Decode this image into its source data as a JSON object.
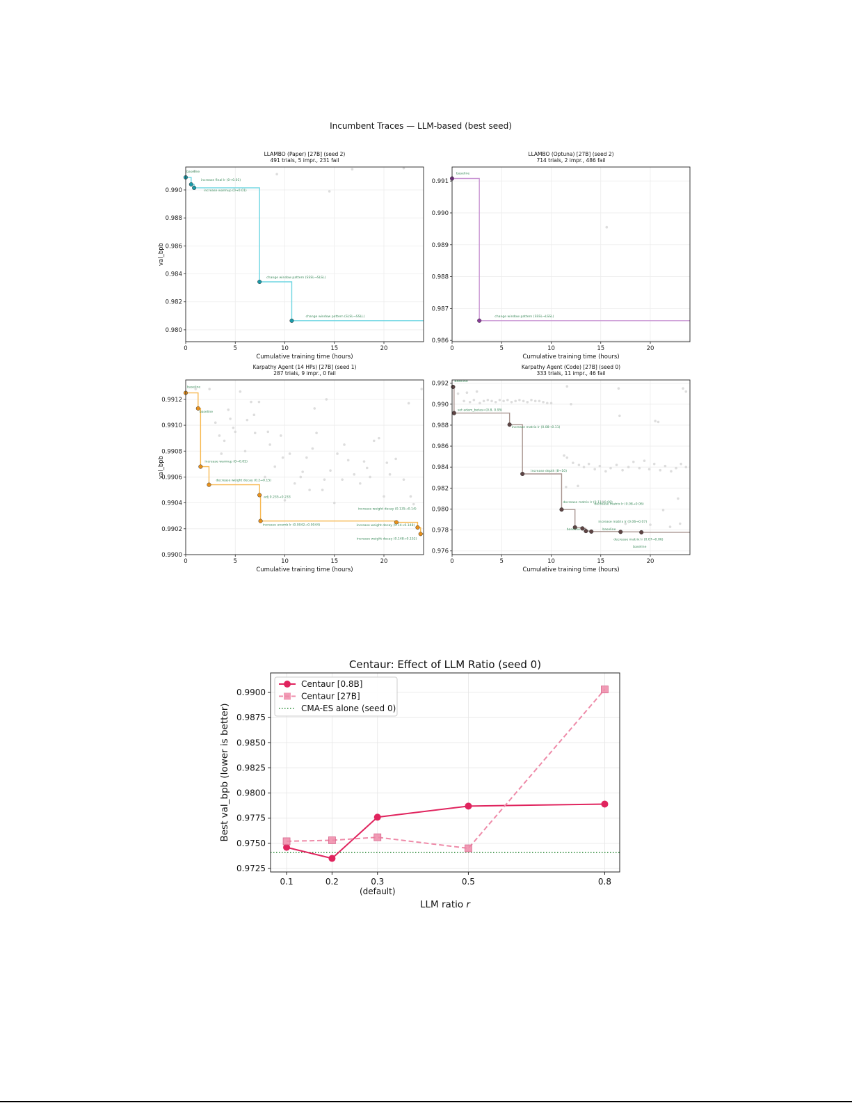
{
  "figure1": {
    "suptitle": "Incumbent Traces — LLM-based (best seed)"
  },
  "chart_data": [
    {
      "type": "line",
      "title": "LLAMBO (Paper) [27B] (seed 2)",
      "subtitle": "491 trials, 5 impr., 231 fail",
      "xlabel": "Cumulative training time (hours)",
      "ylabel": "val_bpb",
      "xlim": [
        0,
        24
      ],
      "ylim": [
        0.97915,
        0.99164
      ],
      "xticks": [
        0,
        5,
        10,
        15,
        20
      ],
      "yticks": [
        0.98,
        0.982,
        0.984,
        0.986,
        0.988,
        0.99
      ],
      "ytick_decimals": 3,
      "grid": true,
      "line_color": "#6fd6e2",
      "marker_color": "#1a9aa8",
      "incumbent": [
        {
          "x": 0.0,
          "y": 0.9909,
          "label": "baseline"
        },
        {
          "x": 0.55,
          "y": 0.9904,
          "label": "increase final lr (0→0.01)"
        },
        {
          "x": 0.85,
          "y": 0.99015,
          "label": "increase warmup (0→0.01)"
        },
        {
          "x": 7.45,
          "y": 0.98343,
          "label": "change window pattern (SSSL→SLSL)"
        },
        {
          "x": 10.7,
          "y": 0.98065,
          "label": "change window pattern (SLSL→SSLL)"
        }
      ],
      "trials": [
        [
          9.2,
          0.99113
        ],
        [
          14.5,
          0.9899
        ],
        [
          16.8,
          0.99148
        ],
        [
          22.0,
          0.99155
        ],
        [
          0.9,
          0.99135
        ]
      ]
    },
    {
      "type": "line",
      "title": "LLAMBO (Optuna) [27B] (seed 2)",
      "subtitle": "714 trials, 2 impr., 486 fail",
      "xlabel": "Cumulative training time (hours)",
      "ylabel": "",
      "xlim": [
        0,
        24
      ],
      "ylim": [
        0.98596,
        0.99144
      ],
      "xticks": [
        0,
        5,
        10,
        15,
        20
      ],
      "yticks": [
        0.986,
        0.987,
        0.988,
        0.989,
        0.99,
        0.991
      ],
      "ytick_decimals": 3,
      "grid": true,
      "line_color": "#c996d4",
      "marker_color": "#8a3a9a",
      "incumbent": [
        {
          "x": 0.0,
          "y": 0.99108,
          "label": "baseline"
        },
        {
          "x": 2.75,
          "y": 0.98662,
          "label": "change window pattern (SSSL→LSSL)"
        }
      ],
      "trials": [
        [
          15.6,
          0.98955
        ]
      ]
    },
    {
      "type": "line",
      "title": "Karpathy Agent (14 HPs) [27B] (seed 1)",
      "subtitle": "287 trials, 9 impr., 0 fail",
      "xlabel": "Cumulative training time (hours)",
      "ylabel": "val_bpb",
      "xlim": [
        0,
        24
      ],
      "ylim": [
        0.99,
        0.99135
      ],
      "xticks": [
        0,
        5,
        10,
        15,
        20
      ],
      "yticks": [
        0.99,
        0.9902,
        0.9904,
        0.9906,
        0.9908,
        0.991,
        0.9912
      ],
      "ytick_decimals": 4,
      "grid": true,
      "line_color": "#f7b850",
      "marker_color": "#e8901a",
      "incumbent": [
        {
          "x": 0.0,
          "y": 0.99125,
          "label": "baseline"
        },
        {
          "x": 1.25,
          "y": 0.99113,
          "label": "baseline"
        },
        {
          "x": 1.5,
          "y": 0.99068,
          "label": "increase warmup (0→0.05)"
        },
        {
          "x": 2.35,
          "y": 0.99054,
          "label": "decrease weight decay (0.2→0.15)"
        },
        {
          "x": 7.45,
          "y": 0.99046,
          "label": "adj 0.235→0.233"
        },
        {
          "x": 7.55,
          "y": 0.99026,
          "label": "increase unemb lr (0.0042→0.0044)"
        },
        {
          "x": 21.25,
          "y": 0.99025,
          "label": "increase weight decay (0.135→0.14)"
        },
        {
          "x": 23.4,
          "y": 0.99021,
          "label": "increase weight decay (0.14→0.148)"
        },
        {
          "x": 23.7,
          "y": 0.99016,
          "label": "increase weight decay (0.148→0.152)"
        }
      ],
      "trials": [
        [
          1.0,
          0.99128
        ],
        [
          2.4,
          0.99128
        ],
        [
          3.0,
          0.99102
        ],
        [
          3.4,
          0.99092
        ],
        [
          3.6,
          0.99078
        ],
        [
          4.3,
          0.99112
        ],
        [
          4.5,
          0.99105
        ],
        [
          4.8,
          0.99098
        ],
        [
          5.5,
          0.99126
        ],
        [
          6.2,
          0.99104
        ],
        [
          6.6,
          0.99118
        ],
        [
          6.9,
          0.99108
        ],
        [
          7.4,
          0.99118
        ],
        [
          8.3,
          0.99095
        ],
        [
          8.5,
          0.99085
        ],
        [
          9.0,
          0.99068
        ],
        [
          9.6,
          0.99092
        ],
        [
          10.5,
          0.99078
        ],
        [
          11.0,
          0.99055
        ],
        [
          11.6,
          0.9906
        ],
        [
          12.2,
          0.99075
        ],
        [
          13.0,
          0.99113
        ],
        [
          13.2,
          0.99094
        ],
        [
          14.2,
          0.9912
        ],
        [
          14.6,
          0.99065
        ],
        [
          15.0,
          0.9904
        ],
        [
          15.3,
          0.99078
        ],
        [
          15.8,
          0.99058
        ],
        [
          16.4,
          0.99073
        ],
        [
          17.0,
          0.99062
        ],
        [
          17.6,
          0.99055
        ],
        [
          18.0,
          0.99072
        ],
        [
          18.6,
          0.9906
        ],
        [
          19.0,
          0.99088
        ],
        [
          19.5,
          0.9909
        ],
        [
          20.0,
          0.99045
        ],
        [
          20.6,
          0.99062
        ],
        [
          21.2,
          0.99074
        ],
        [
          22.0,
          0.99058
        ],
        [
          22.5,
          0.99117
        ],
        [
          23.0,
          0.99039
        ],
        [
          23.8,
          0.99128
        ],
        [
          12.5,
          0.9905
        ],
        [
          10.0,
          0.99042
        ],
        [
          8.0,
          0.9906
        ],
        [
          16.0,
          0.99085
        ],
        [
          5.0,
          0.99095
        ],
        [
          6.0,
          0.9908
        ],
        [
          13.8,
          0.9905
        ],
        [
          9.8,
          0.99075
        ],
        [
          11.8,
          0.99064
        ],
        [
          14.0,
          0.99058
        ],
        [
          18.3,
          0.99067
        ],
        [
          20.3,
          0.99071
        ],
        [
          22.7,
          0.99045
        ],
        [
          3.9,
          0.99088
        ],
        [
          7.0,
          0.99094
        ],
        [
          12.8,
          0.99082
        ]
      ]
    },
    {
      "type": "line",
      "title": "Karpathy Agent (Code) [27B] (seed 0)",
      "subtitle": "333 trials, 11 impr., 46 fail",
      "xlabel": "Cumulative training time (hours)",
      "ylabel": "",
      "xlim": [
        0,
        24
      ],
      "ylim": [
        0.97565,
        0.99231
      ],
      "xticks": [
        0,
        5,
        10,
        15,
        20
      ],
      "yticks": [
        0.976,
        0.978,
        0.98,
        0.982,
        0.984,
        0.986,
        0.988,
        0.99,
        0.992
      ],
      "ytick_decimals": 3,
      "grid": true,
      "line_color": "#a8948f",
      "marker_color": "#5e4444",
      "incumbent": [
        {
          "x": 0.1,
          "y": 0.99165,
          "label": "baseline"
        },
        {
          "x": 0.2,
          "y": 0.98915,
          "label": "set adam_betas=(0.8, 0.95)"
        },
        {
          "x": 5.8,
          "y": 0.98805,
          "label": "increase matrix lr (0.08→0.11)"
        },
        {
          "x": 7.1,
          "y": 0.98335,
          "label": "increase depth (8→10)"
        },
        {
          "x": 11.05,
          "y": 0.97995,
          "label": "decrease matrix lr (0.11→0.08)"
        },
        {
          "x": 12.4,
          "y": 0.97825,
          "label": "baseline"
        },
        {
          "x": 13.15,
          "y": 0.97815,
          "label": "decrease matrix lr (0.08→0.06)"
        },
        {
          "x": 13.5,
          "y": 0.9779,
          "label": "increase matrix lr (0.06→0.07)"
        },
        {
          "x": 14.05,
          "y": 0.97785,
          "label": "baseline"
        },
        {
          "x": 17.0,
          "y": 0.97782,
          "label": "decrease matrix lr (0.07→0.06)"
        },
        {
          "x": 19.1,
          "y": 0.97778,
          "label": "baseline"
        }
      ],
      "trials": [
        [
          0.6,
          0.991
        ],
        [
          1.5,
          0.9911
        ],
        [
          2.5,
          0.9912
        ],
        [
          1.2,
          0.9903
        ],
        [
          1.8,
          0.9902
        ],
        [
          2.2,
          0.9904
        ],
        [
          2.8,
          0.9901
        ],
        [
          3.2,
          0.9903
        ],
        [
          3.6,
          0.9904
        ],
        [
          4.0,
          0.9903
        ],
        [
          4.4,
          0.9902
        ],
        [
          4.8,
          0.9904
        ],
        [
          5.2,
          0.9903
        ],
        [
          5.6,
          0.9904
        ],
        [
          6.0,
          0.9902
        ],
        [
          6.4,
          0.9903
        ],
        [
          6.8,
          0.9904
        ],
        [
          7.2,
          0.9903
        ],
        [
          7.6,
          0.9902
        ],
        [
          8.0,
          0.9904
        ],
        [
          8.4,
          0.9903
        ],
        [
          8.8,
          0.9903
        ],
        [
          9.2,
          0.9902
        ],
        [
          9.6,
          0.9901
        ],
        [
          10.0,
          0.9901
        ],
        [
          11.6,
          0.9917
        ],
        [
          12.0,
          0.99
        ],
        [
          16.8,
          0.9915
        ],
        [
          16.9,
          0.9889
        ],
        [
          20.5,
          0.9884
        ],
        [
          20.8,
          0.9883
        ],
        [
          23.3,
          0.9915
        ],
        [
          23.6,
          0.9912
        ],
        [
          11.3,
          0.9851
        ],
        [
          11.6,
          0.9849
        ],
        [
          12.2,
          0.9844
        ],
        [
          12.8,
          0.9842
        ],
        [
          13.3,
          0.984
        ],
        [
          13.8,
          0.9843
        ],
        [
          14.4,
          0.9838
        ],
        [
          14.9,
          0.9841
        ],
        [
          15.5,
          0.9836
        ],
        [
          16.0,
          0.9839
        ],
        [
          16.6,
          0.9842
        ],
        [
          17.2,
          0.9837
        ],
        [
          17.8,
          0.984
        ],
        [
          18.3,
          0.9845
        ],
        [
          18.9,
          0.9839
        ],
        [
          19.4,
          0.9846
        ],
        [
          19.9,
          0.9838
        ],
        [
          20.4,
          0.9843
        ],
        [
          21.0,
          0.9837
        ],
        [
          21.5,
          0.9841
        ],
        [
          22.1,
          0.9836
        ],
        [
          22.6,
          0.9839
        ],
        [
          23.1,
          0.9843
        ],
        [
          23.6,
          0.984
        ],
        [
          11.5,
          0.9821
        ],
        [
          12.7,
          0.9822
        ],
        [
          22.8,
          0.981
        ],
        [
          21.3,
          0.9799
        ],
        [
          17.5,
          0.9786
        ],
        [
          20.0,
          0.9785
        ],
        [
          22.0,
          0.9783
        ],
        [
          23.0,
          0.9786
        ],
        [
          15.2,
          0.9807
        ]
      ]
    },
    {
      "type": "line",
      "title": "Centaur: Effect of LLM Ratio (seed 0)",
      "xlabel": "LLM ratio ",
      "xlabel_var": "r",
      "ylabel": "Best val_bpb (lower is better)",
      "xlim": [
        0.0647,
        0.833
      ],
      "ylim": [
        0.97215,
        0.99194
      ],
      "x": [
        0.1,
        0.2,
        0.3,
        0.5,
        0.8
      ],
      "xtick_labels": [
        "0.1",
        "0.2",
        "0.3",
        "0.5",
        "0.8"
      ],
      "xtick_sublabels": [
        "",
        "",
        "(default)",
        "",
        ""
      ],
      "yticks": [
        0.9725,
        0.975,
        0.9775,
        0.98,
        0.9825,
        0.985,
        0.9875,
        0.99
      ],
      "ytick_decimals": 4,
      "grid": true,
      "legend_position": "upper-left",
      "series": [
        {
          "name": "Centaur [0.8B]",
          "values": [
            0.9746,
            0.9735,
            0.9776,
            0.9787,
            0.9789
          ],
          "color": "#e0245e",
          "style": "solid",
          "marker": "circle"
        },
        {
          "name": "Centaur [27B]",
          "values": [
            0.9752,
            0.9753,
            0.9756,
            0.9745,
            0.9903
          ],
          "color": "#ee8aa8",
          "style": "dashed",
          "marker": "square"
        }
      ],
      "reference": {
        "name": "CMA-ES alone (seed 0)",
        "value": 0.9741,
        "color": "#2e8b3a",
        "style": "dotted"
      }
    }
  ],
  "annotation_color": "#3a8a5a"
}
